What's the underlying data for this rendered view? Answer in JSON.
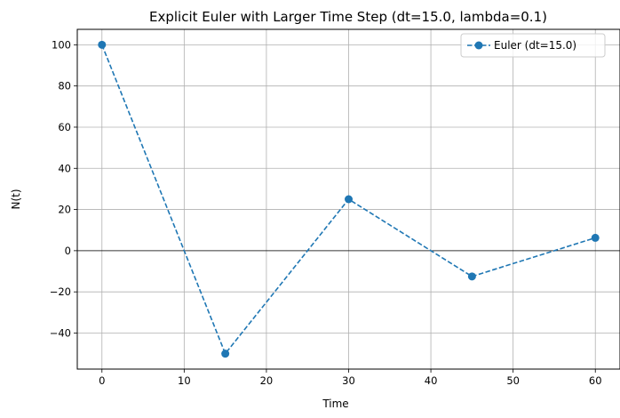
{
  "chart_data": {
    "type": "line",
    "title": "Explicit Euler with Larger Time Step (dt=15.0, lambda=0.1)",
    "xlabel": "Time",
    "ylabel": "N(t)",
    "xlim": [
      -3,
      63
    ],
    "ylim": [
      -57.5,
      107.5
    ],
    "xticks": [
      0,
      10,
      20,
      30,
      40,
      50,
      60
    ],
    "yticks": [
      -40,
      -20,
      0,
      20,
      40,
      60,
      80,
      100
    ],
    "grid": true,
    "zero_line": true,
    "legend_position": "top-right",
    "series": [
      {
        "name": "Euler (dt=15.0)",
        "color": "#1f77b4",
        "line_style": "dashed",
        "marker": "circle",
        "x": [
          0,
          15,
          30,
          45,
          60
        ],
        "y": [
          100,
          -50,
          25,
          -12.5,
          6.25
        ]
      }
    ]
  }
}
